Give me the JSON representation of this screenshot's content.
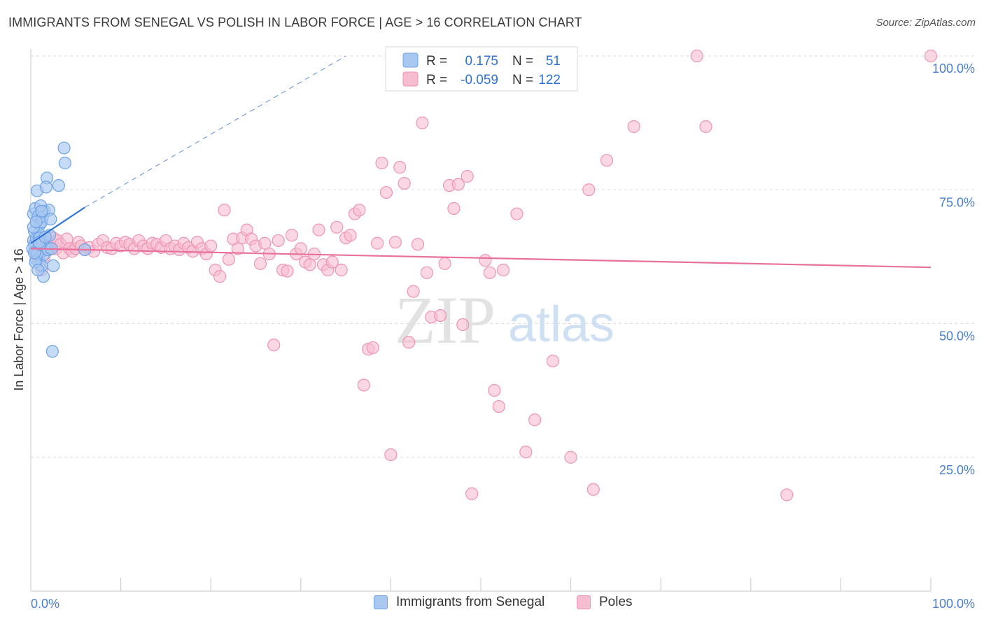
{
  "title": "IMMIGRANTS FROM SENEGAL VS POLISH IN LABOR FORCE | AGE > 16 CORRELATION CHART",
  "source": "Source: ZipAtlas.com",
  "watermark": {
    "zip": "ZIP",
    "atlas": "atlas"
  },
  "legend_top": [
    {
      "r_label": "R =",
      "r_value": "0.175",
      "n_label": "N =",
      "n_value": "51"
    },
    {
      "r_label": "R =",
      "r_value": "-0.059",
      "n_label": "N =",
      "n_value": "122"
    }
  ],
  "colors": {
    "blue_fill": "#a8c8f0",
    "blue_stroke": "#6fa3e6",
    "blue_line": "#2f72d6",
    "pink_fill": "#f6bcd0",
    "pink_stroke": "#ee94b4",
    "pink_line": "#e8709a",
    "axis_text": "#4a7fd0",
    "grid": "#dddddd"
  },
  "chart_data": {
    "type": "scatter",
    "title": "IMMIGRANTS FROM SENEGAL VS POLISH IN LABOR FORCE | AGE > 16 CORRELATION CHART",
    "xlabel": "",
    "ylabel": "In Labor Force | Age > 16",
    "xlim": [
      0,
      100
    ],
    "ylim": [
      0,
      100
    ],
    "x_tick_labels": [
      "0.0%",
      "100.0%"
    ],
    "y_ticks": [
      25,
      50,
      75,
      100
    ],
    "y_tick_labels": [
      "25.0%",
      "50.0%",
      "75.0%",
      "100.0%"
    ],
    "grid": true,
    "series": [
      {
        "name": "Immigrants from Senegal",
        "color": "#a8c8f0",
        "R": 0.175,
        "N": 51,
        "trend": {
          "x": [
            0,
            6
          ],
          "y": [
            65.0,
            71.7
          ]
        },
        "trend_extension": {
          "x": [
            6,
            35
          ],
          "y": [
            71.7,
            100
          ]
        },
        "points": [
          [
            0.3,
            65.5
          ],
          [
            0.4,
            64.8
          ],
          [
            0.5,
            63.5
          ],
          [
            0.6,
            66.0
          ],
          [
            0.3,
            70.5
          ],
          [
            0.5,
            71.5
          ],
          [
            0.7,
            74.8
          ],
          [
            0.8,
            64.0
          ],
          [
            0.9,
            62.5
          ],
          [
            1.0,
            61.0
          ],
          [
            0.8,
            70.0
          ],
          [
            1.0,
            68.5
          ],
          [
            1.2,
            69.0
          ],
          [
            1.3,
            70.0
          ],
          [
            1.5,
            71.0
          ],
          [
            1.1,
            63.5
          ],
          [
            1.4,
            62.8
          ],
          [
            1.6,
            64.2
          ],
          [
            1.3,
            65.5
          ],
          [
            1.2,
            60.8
          ],
          [
            1.4,
            58.8
          ],
          [
            1.8,
            77.2
          ],
          [
            2.0,
            71.2
          ],
          [
            1.7,
            75.5
          ],
          [
            2.2,
            69.5
          ],
          [
            2.1,
            66.5
          ],
          [
            2.5,
            60.8
          ],
          [
            2.4,
            44.8
          ],
          [
            3.1,
            75.8
          ],
          [
            3.7,
            82.8
          ],
          [
            3.8,
            80.0
          ],
          [
            0.4,
            67.2
          ],
          [
            0.6,
            62.0
          ],
          [
            0.9,
            66.8
          ],
          [
            1.1,
            72.0
          ],
          [
            0.2,
            64.0
          ],
          [
            0.7,
            63.0
          ],
          [
            1.5,
            64.5
          ],
          [
            0.5,
            61.5
          ],
          [
            0.8,
            60.0
          ],
          [
            1.0,
            66.0
          ],
          [
            0.3,
            68.0
          ],
          [
            1.2,
            71.0
          ],
          [
            0.6,
            69.0
          ],
          [
            1.9,
            63.8
          ],
          [
            0.4,
            63.2
          ],
          [
            1.0,
            64.8
          ],
          [
            2.3,
            64.0
          ],
          [
            0.9,
            65.2
          ],
          [
            1.6,
            66.2
          ],
          [
            6.0,
            63.8
          ]
        ]
      },
      {
        "name": "Poles",
        "color": "#f6bcd0",
        "R": -0.059,
        "N": 122,
        "trend": {
          "x": [
            0,
            100
          ],
          "y": [
            64.0,
            60.5
          ]
        },
        "points": [
          [
            0.5,
            63.5
          ],
          [
            0.8,
            62.0
          ],
          [
            1.0,
            64.5
          ],
          [
            1.2,
            60.0
          ],
          [
            1.5,
            62.5
          ],
          [
            1.8,
            65.0
          ],
          [
            2.0,
            63.8
          ],
          [
            2.3,
            64.2
          ],
          [
            2.5,
            66.0
          ],
          [
            2.8,
            64.0
          ],
          [
            3.0,
            65.5
          ],
          [
            3.3,
            64.8
          ],
          [
            3.6,
            63.2
          ],
          [
            4.0,
            65.8
          ],
          [
            4.3,
            64.0
          ],
          [
            4.6,
            63.5
          ],
          [
            5.0,
            64.0
          ],
          [
            5.3,
            65.2
          ],
          [
            5.6,
            64.5
          ],
          [
            6.0,
            63.8
          ],
          [
            6.5,
            64.2
          ],
          [
            7.0,
            63.5
          ],
          [
            7.5,
            64.8
          ],
          [
            8.0,
            65.5
          ],
          [
            8.5,
            64.2
          ],
          [
            9.0,
            64.0
          ],
          [
            9.5,
            65.0
          ],
          [
            10.0,
            64.5
          ],
          [
            10.5,
            65.2
          ],
          [
            11.0,
            64.8
          ],
          [
            11.5,
            64.0
          ],
          [
            12.0,
            65.5
          ],
          [
            12.5,
            64.5
          ],
          [
            13.0,
            64.0
          ],
          [
            13.5,
            65.0
          ],
          [
            14.0,
            64.8
          ],
          [
            14.5,
            64.2
          ],
          [
            15.0,
            65.5
          ],
          [
            15.5,
            64.0
          ],
          [
            16.0,
            64.5
          ],
          [
            16.5,
            63.8
          ],
          [
            17.0,
            65.0
          ],
          [
            17.5,
            64.2
          ],
          [
            18.0,
            63.5
          ],
          [
            18.5,
            65.2
          ],
          [
            19.0,
            64.0
          ],
          [
            19.5,
            63.0
          ],
          [
            20.0,
            64.5
          ],
          [
            20.5,
            60.0
          ],
          [
            21.0,
            58.8
          ],
          [
            21.5,
            71.2
          ],
          [
            22.0,
            62.0
          ],
          [
            22.5,
            65.8
          ],
          [
            23.0,
            64.0
          ],
          [
            23.5,
            66.0
          ],
          [
            24.0,
            67.5
          ],
          [
            24.5,
            65.8
          ],
          [
            25.0,
            64.5
          ],
          [
            25.5,
            61.2
          ],
          [
            26.0,
            65.0
          ],
          [
            26.5,
            63.0
          ],
          [
            27.0,
            46.0
          ],
          [
            27.5,
            65.5
          ],
          [
            28.0,
            60.0
          ],
          [
            28.5,
            59.8
          ],
          [
            29.0,
            66.5
          ],
          [
            29.5,
            63.0
          ],
          [
            30.0,
            64.0
          ],
          [
            30.5,
            61.5
          ],
          [
            31.0,
            61.0
          ],
          [
            31.5,
            63.0
          ],
          [
            32.0,
            67.5
          ],
          [
            32.5,
            61.0
          ],
          [
            33.0,
            60.0
          ],
          [
            33.5,
            61.5
          ],
          [
            34.0,
            68.0
          ],
          [
            34.5,
            60.0
          ],
          [
            35.0,
            66.0
          ],
          [
            35.5,
            66.5
          ],
          [
            36.0,
            70.5
          ],
          [
            36.5,
            71.2
          ],
          [
            37.0,
            38.5
          ],
          [
            37.5,
            45.2
          ],
          [
            38.0,
            45.5
          ],
          [
            38.5,
            65.0
          ],
          [
            39.0,
            80.0
          ],
          [
            39.5,
            74.5
          ],
          [
            40.0,
            25.5
          ],
          [
            40.5,
            65.2
          ],
          [
            41.0,
            79.2
          ],
          [
            41.5,
            76.2
          ],
          [
            42.0,
            46.5
          ],
          [
            42.5,
            56.0
          ],
          [
            43.0,
            64.8
          ],
          [
            43.5,
            87.5
          ],
          [
            44.0,
            59.5
          ],
          [
            44.5,
            51.2
          ],
          [
            45.5,
            51.5
          ],
          [
            46.0,
            61.2
          ],
          [
            46.5,
            75.8
          ],
          [
            47.0,
            71.5
          ],
          [
            47.5,
            76.0
          ],
          [
            48.0,
            49.8
          ],
          [
            48.5,
            77.5
          ],
          [
            49.0,
            18.2
          ],
          [
            50.5,
            61.8
          ],
          [
            51.0,
            59.5
          ],
          [
            51.5,
            37.5
          ],
          [
            52.0,
            34.5
          ],
          [
            52.5,
            60.0
          ],
          [
            54.0,
            70.5
          ],
          [
            55.0,
            26.0
          ],
          [
            56.0,
            32.0
          ],
          [
            58.0,
            43.0
          ],
          [
            60.0,
            25.0
          ],
          [
            62.0,
            75.0
          ],
          [
            62.5,
            19.0
          ],
          [
            64.0,
            80.5
          ],
          [
            67.0,
            86.8
          ],
          [
            75.0,
            86.8
          ],
          [
            84.0,
            18.0
          ],
          [
            74.0,
            100.0
          ],
          [
            100.0,
            100.0
          ]
        ]
      }
    ]
  }
}
